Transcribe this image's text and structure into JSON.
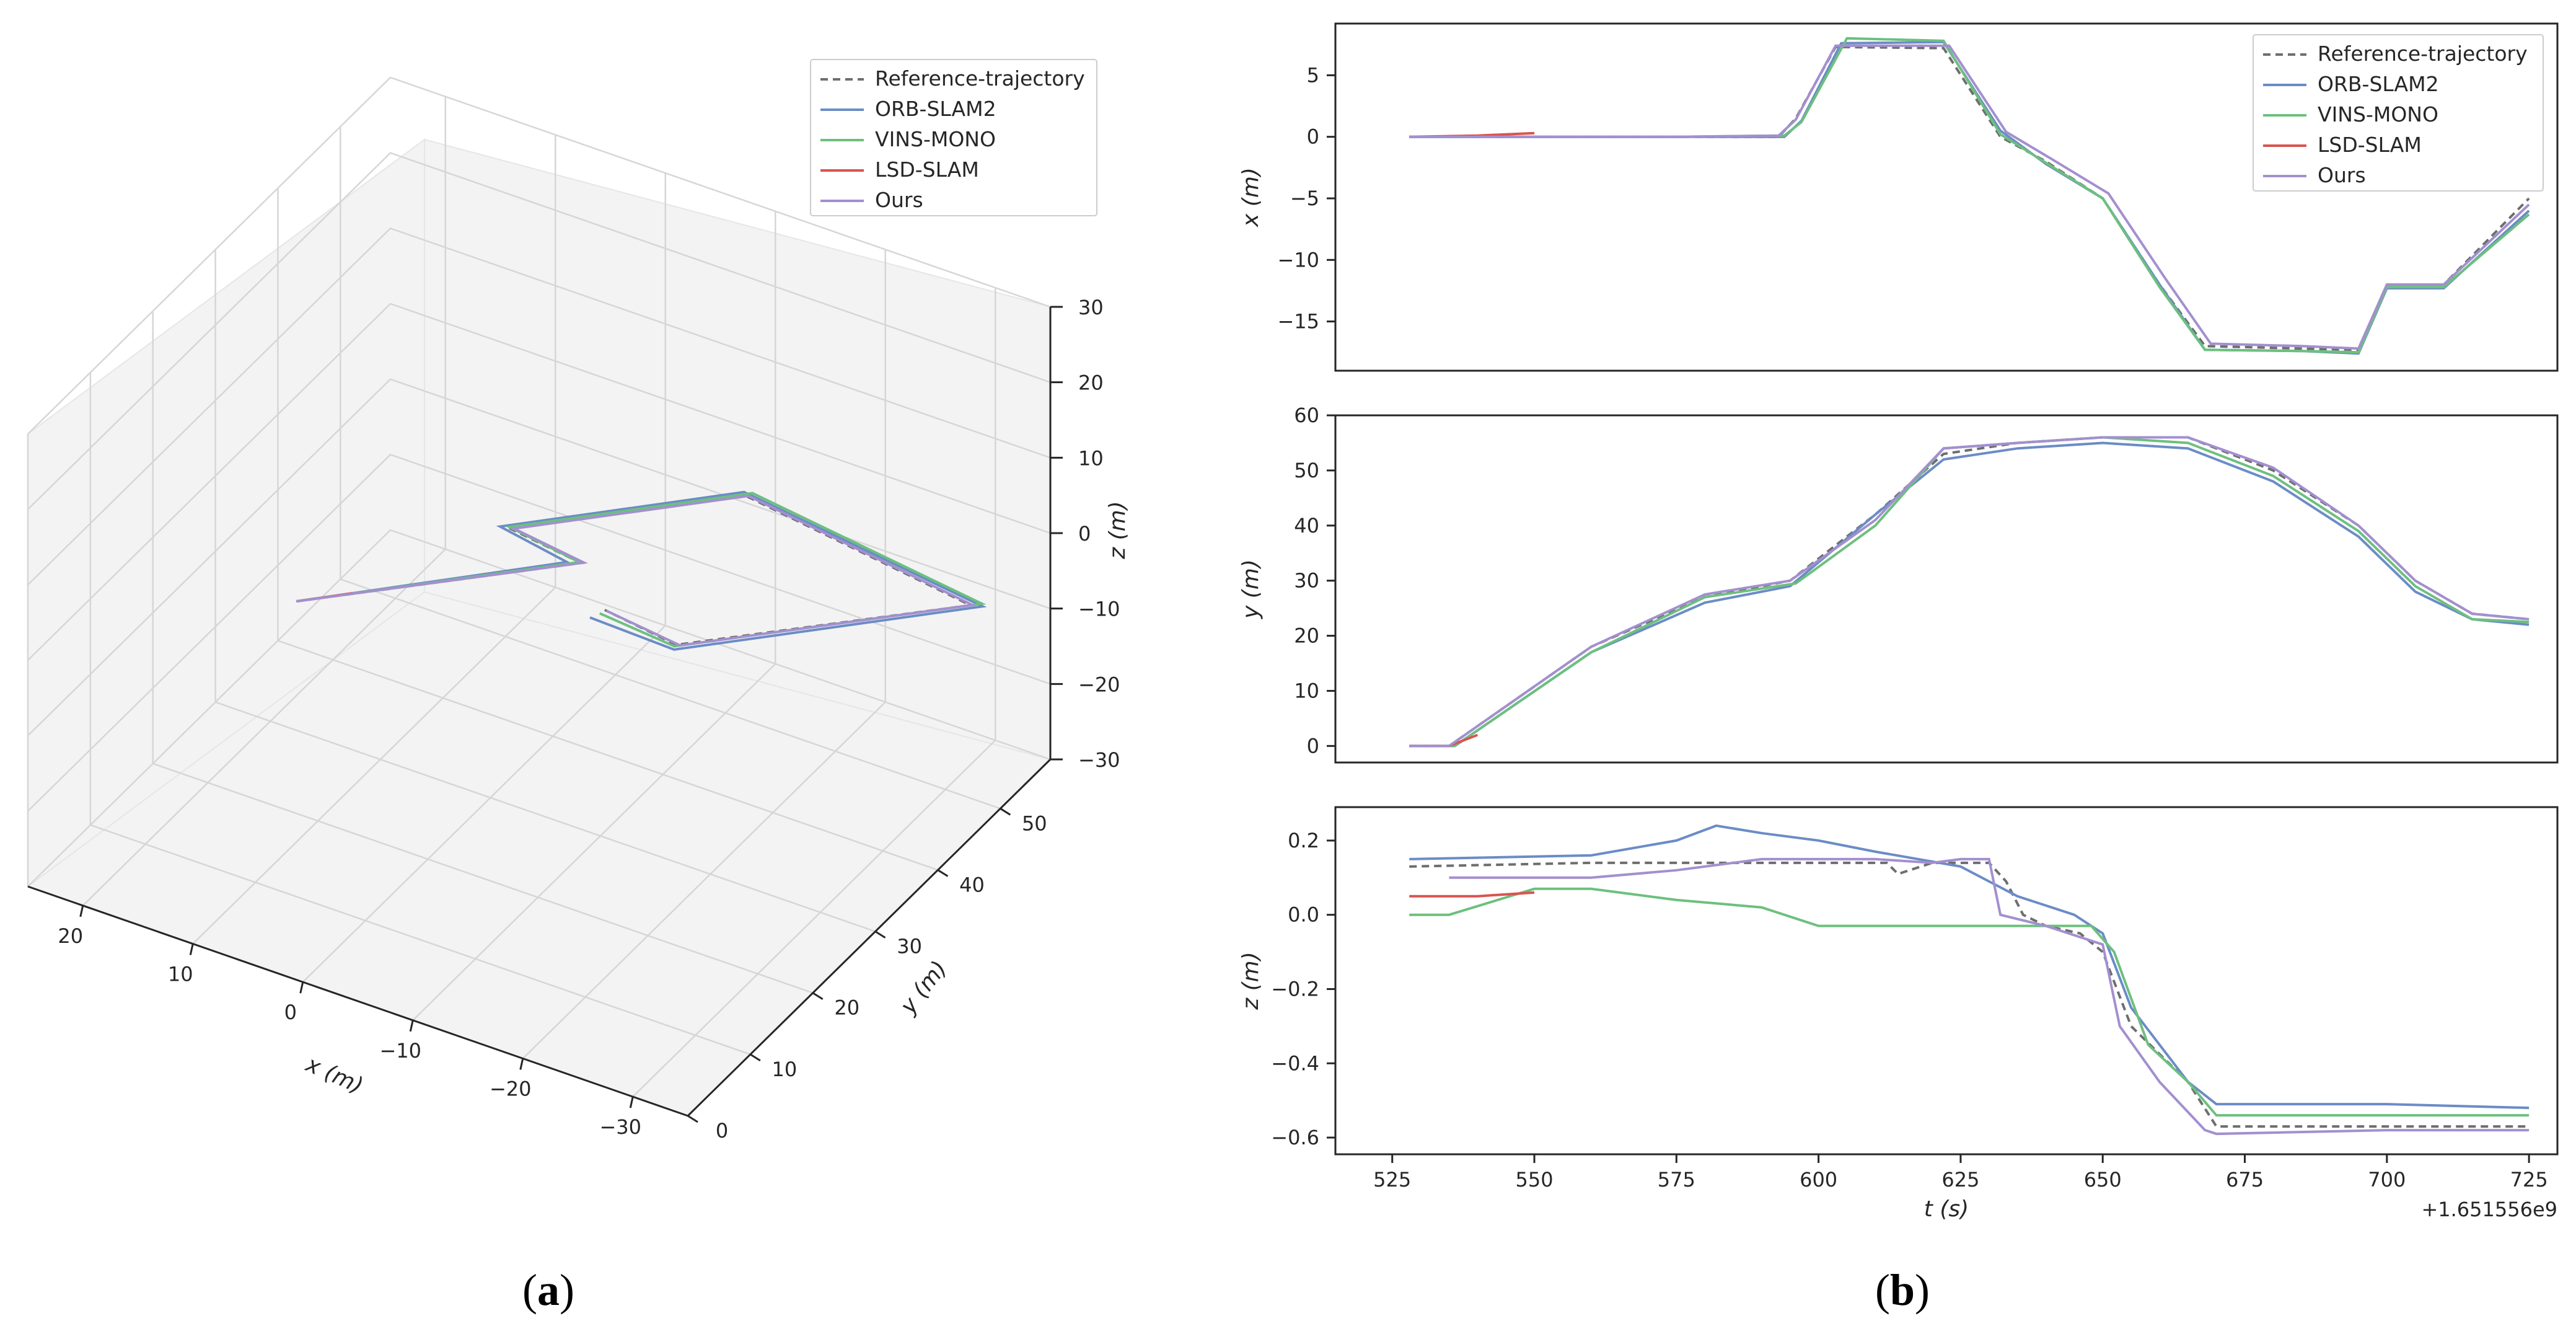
{
  "colors": {
    "reference": "#6e6e6e",
    "orb": "#6b8cc6",
    "vins": "#6cc07e",
    "lsd": "#d9534f",
    "ours": "#a38fcf",
    "pane": "#f3f3f3",
    "grid": "#d6d6d6"
  },
  "legend": {
    "entries": [
      "Reference-trajectory",
      "ORB-SLAM2",
      "VINS-MONO",
      "LSD-SLAM",
      "Ours"
    ]
  },
  "captions": {
    "a": "a",
    "b": "b",
    "paren_open": "(",
    "paren_close": ")"
  },
  "chart_data": [
    {
      "id": "a",
      "type": "line3d",
      "xlabel": "x (m)",
      "ylabel": "y (m)",
      "zlabel": "z (m)",
      "xlim": [
        -35,
        25
      ],
      "ylim": [
        0,
        58
      ],
      "zlim": [
        -30,
        30
      ],
      "xticks": [
        "−30",
        "−20",
        "−10",
        "0",
        "10",
        "20"
      ],
      "xtick_values": [
        -30,
        -20,
        -10,
        0,
        10,
        20
      ],
      "yticks": [
        "0",
        "10",
        "20",
        "30",
        "40",
        "50"
      ],
      "ytick_values": [
        0,
        10,
        20,
        30,
        40,
        50
      ],
      "zticks": [
        "30",
        "20",
        "10",
        "0",
        "−10",
        "−20",
        "−30"
      ],
      "ztick_values": [
        30,
        20,
        10,
        0,
        -10,
        -20,
        -30
      ],
      "series": [
        {
          "name": "Reference-trajectory",
          "key": "reference",
          "dash": true,
          "points": [
            [
              0,
              0,
              0
            ],
            [
              0,
              30,
              0
            ],
            [
              8,
              30,
              0
            ],
            [
              8,
              55,
              0
            ],
            [
              -17,
              55,
              0
            ],
            [
              -17,
              24,
              0
            ],
            [
              -9,
              24,
              0
            ]
          ]
        },
        {
          "name": "ORB-SLAM2",
          "key": "orb",
          "points": [
            [
              0,
              0,
              0
            ],
            [
              0.5,
              29,
              0
            ],
            [
              8.5,
              29.5,
              0
            ],
            [
              8.8,
              55.5,
              0
            ],
            [
              -17.5,
              55.8,
              0
            ],
            [
              -17.8,
              23,
              0
            ],
            [
              -10,
              21.5,
              0
            ]
          ]
        },
        {
          "name": "VINS-MONO",
          "key": "vins",
          "points": [
            [
              0,
              0,
              0
            ],
            [
              0.2,
              30,
              0
            ],
            [
              8.2,
              30.2,
              0
            ],
            [
              8.4,
              56,
              0
            ],
            [
              -17,
              56.2,
              0
            ],
            [
              -17.2,
              23.6,
              0
            ],
            [
              -9.5,
              23,
              0
            ]
          ]
        },
        {
          "name": "LSD-SLAM",
          "key": "lsd",
          "points": [
            [
              0,
              0,
              0
            ],
            [
              0.1,
              6,
              0
            ]
          ]
        },
        {
          "name": "Ours",
          "key": "ours",
          "points": [
            [
              0,
              0,
              0
            ],
            [
              0,
              30.3,
              0
            ],
            [
              7.8,
              30.3,
              0
            ],
            [
              8,
              55.2,
              0
            ],
            [
              -17,
              55.2,
              0
            ],
            [
              -17.2,
              24.2,
              0
            ],
            [
              -9.2,
              24,
              0
            ]
          ]
        }
      ]
    },
    {
      "id": "b-x",
      "type": "line",
      "ylabel": "x (m)",
      "xlim": [
        515,
        730
      ],
      "ylim": [
        -19,
        9.2
      ],
      "yticks": [
        "5",
        "0",
        "−5",
        "−10",
        "−15"
      ],
      "ytick_values": [
        5,
        0,
        -5,
        -10,
        -15
      ],
      "series": [
        {
          "name": "Reference-trajectory",
          "key": "reference",
          "dash": true,
          "x": [
            528,
            575,
            593,
            596,
            603,
            622,
            632,
            640,
            650,
            660,
            668,
            685,
            695,
            700,
            710,
            725
          ],
          "y": [
            0,
            0,
            0,
            1.5,
            7.3,
            7.2,
            0,
            -2,
            -5,
            -12,
            -17,
            -17.2,
            -17.3,
            -12,
            -12,
            -5
          ]
        },
        {
          "name": "ORB-SLAM2",
          "key": "orb",
          "x": [
            528,
            575,
            594,
            597,
            604,
            622,
            632,
            640,
            650,
            660,
            668,
            685,
            695,
            700,
            710,
            725
          ],
          "y": [
            0,
            0,
            0,
            1.3,
            7.6,
            7.7,
            0.5,
            -2.2,
            -5,
            -12,
            -17.3,
            -17.4,
            -17.6,
            -12.3,
            -12.3,
            -6
          ]
        },
        {
          "name": "VINS-MONO",
          "key": "vins",
          "x": [
            528,
            575,
            594,
            597,
            605,
            622,
            632,
            640,
            650,
            660,
            668,
            685,
            695,
            700,
            710,
            725
          ],
          "y": [
            0,
            0,
            0.1,
            1.2,
            8,
            7.8,
            0.2,
            -2.1,
            -5,
            -12.2,
            -17.3,
            -17.4,
            -17.5,
            -12.2,
            -12.2,
            -6.3
          ]
        },
        {
          "name": "LSD-SLAM",
          "key": "lsd",
          "x": [
            528,
            540,
            550
          ],
          "y": [
            0,
            0.1,
            0.3
          ]
        },
        {
          "name": "Ours",
          "key": "ours",
          "x": [
            528,
            575,
            593,
            596,
            603,
            623,
            633,
            641,
            651,
            661,
            669,
            685,
            695,
            700,
            710,
            725
          ],
          "y": [
            0,
            0,
            0.1,
            1.4,
            7.4,
            7.4,
            0.4,
            -1.8,
            -4.6,
            -11.5,
            -16.8,
            -17,
            -17.2,
            -12,
            -12,
            -5.5
          ]
        }
      ]
    },
    {
      "id": "b-y",
      "type": "line",
      "ylabel": "y (m)",
      "xlim": [
        515,
        730
      ],
      "ylim": [
        -3,
        60
      ],
      "yticks": [
        "60",
        "50",
        "40",
        "30",
        "20",
        "10",
        "0"
      ],
      "ytick_values": [
        60,
        50,
        40,
        30,
        20,
        10,
        0
      ],
      "series": [
        {
          "name": "Reference-trajectory",
          "key": "reference",
          "dash": true,
          "x": [
            528,
            535,
            560,
            580,
            595,
            610,
            622,
            635,
            650,
            665,
            680,
            695,
            705,
            715,
            725
          ],
          "y": [
            0,
            0,
            18,
            27,
            30,
            42,
            53,
            55,
            56,
            56,
            50,
            40,
            30,
            24,
            23
          ]
        },
        {
          "name": "ORB-SLAM2",
          "key": "orb",
          "x": [
            528,
            536,
            560,
            580,
            595,
            610,
            622,
            635,
            650,
            665,
            680,
            695,
            705,
            715,
            725
          ],
          "y": [
            0,
            0,
            17,
            26,
            29,
            42,
            52,
            54,
            55,
            54,
            48,
            38,
            28,
            23,
            22
          ]
        },
        {
          "name": "VINS-MONO",
          "key": "vins",
          "x": [
            528,
            536,
            560,
            580,
            596,
            610,
            622,
            635,
            650,
            665,
            680,
            695,
            705,
            715,
            725
          ],
          "y": [
            0,
            0,
            17,
            27,
            29.5,
            40,
            54,
            55,
            56,
            55,
            49,
            39,
            29,
            23,
            22.5
          ]
        },
        {
          "name": "LSD-SLAM",
          "key": "lsd",
          "x": [
            528,
            535,
            540
          ],
          "y": [
            0,
            0,
            2
          ]
        },
        {
          "name": "Ours",
          "key": "ours",
          "x": [
            528,
            535,
            560,
            580,
            595,
            610,
            622,
            635,
            650,
            665,
            680,
            695,
            705,
            715,
            725
          ],
          "y": [
            0,
            0,
            18,
            27.5,
            30,
            41,
            54,
            55,
            56,
            56,
            50.5,
            40,
            30,
            24,
            23
          ]
        }
      ]
    },
    {
      "id": "b-z",
      "type": "line",
      "ylabel": "z (m)",
      "xlabel": "t (s)",
      "offset_label": "+1.651556e9",
      "xlim": [
        515,
        730
      ],
      "ylim": [
        -0.645,
        0.29
      ],
      "xticks": [
        "525",
        "550",
        "575",
        "600",
        "625",
        "650",
        "675",
        "700",
        "725"
      ],
      "xtick_values": [
        525,
        550,
        575,
        600,
        625,
        650,
        675,
        700,
        725
      ],
      "yticks": [
        "0.2",
        "0.0",
        "−0.2",
        "−0.4",
        "−0.6"
      ],
      "ytick_values": [
        0.2,
        0.0,
        -0.2,
        -0.4,
        -0.6
      ],
      "series": [
        {
          "name": "Reference-trajectory",
          "key": "reference",
          "dash": true,
          "x": [
            528,
            560,
            585,
            612,
            614,
            620,
            630,
            633,
            636,
            640,
            646,
            650,
            655,
            665,
            670,
            700,
            725
          ],
          "y": [
            0.13,
            0.14,
            0.14,
            0.14,
            0.11,
            0.14,
            0.14,
            0.09,
            0.0,
            -0.03,
            -0.05,
            -0.1,
            -0.3,
            -0.45,
            -0.57,
            -0.57,
            -0.57
          ]
        },
        {
          "name": "ORB-SLAM2",
          "key": "orb",
          "x": [
            528,
            560,
            575,
            582,
            590,
            600,
            610,
            625,
            635,
            645,
            650,
            655,
            665,
            670,
            700,
            725
          ],
          "y": [
            0.15,
            0.16,
            0.2,
            0.24,
            0.22,
            0.2,
            0.17,
            0.13,
            0.05,
            0.0,
            -0.05,
            -0.25,
            -0.45,
            -0.51,
            -0.51,
            -0.52
          ]
        },
        {
          "name": "VINS-MONO",
          "key": "vins",
          "x": [
            528,
            535,
            550,
            560,
            575,
            590,
            600,
            625,
            640,
            648,
            652,
            658,
            665,
            670,
            700,
            725
          ],
          "y": [
            0.0,
            0.0,
            0.07,
            0.07,
            0.04,
            0.02,
            -0.03,
            -0.03,
            -0.03,
            -0.03,
            -0.1,
            -0.35,
            -0.45,
            -0.54,
            -0.54,
            -0.54
          ]
        },
        {
          "name": "LSD-SLAM",
          "key": "lsd",
          "x": [
            528,
            540,
            550
          ],
          "y": [
            0.05,
            0.05,
            0.06
          ]
        },
        {
          "name": "Ours",
          "key": "ours",
          "x": [
            535,
            560,
            575,
            590,
            610,
            620,
            625,
            630,
            632,
            640,
            650,
            653,
            660,
            668,
            670,
            700,
            725
          ],
          "y": [
            0.1,
            0.1,
            0.12,
            0.15,
            0.15,
            0.14,
            0.15,
            0.15,
            0.0,
            -0.03,
            -0.08,
            -0.3,
            -0.45,
            -0.58,
            -0.59,
            -0.58,
            -0.58
          ]
        }
      ]
    }
  ]
}
